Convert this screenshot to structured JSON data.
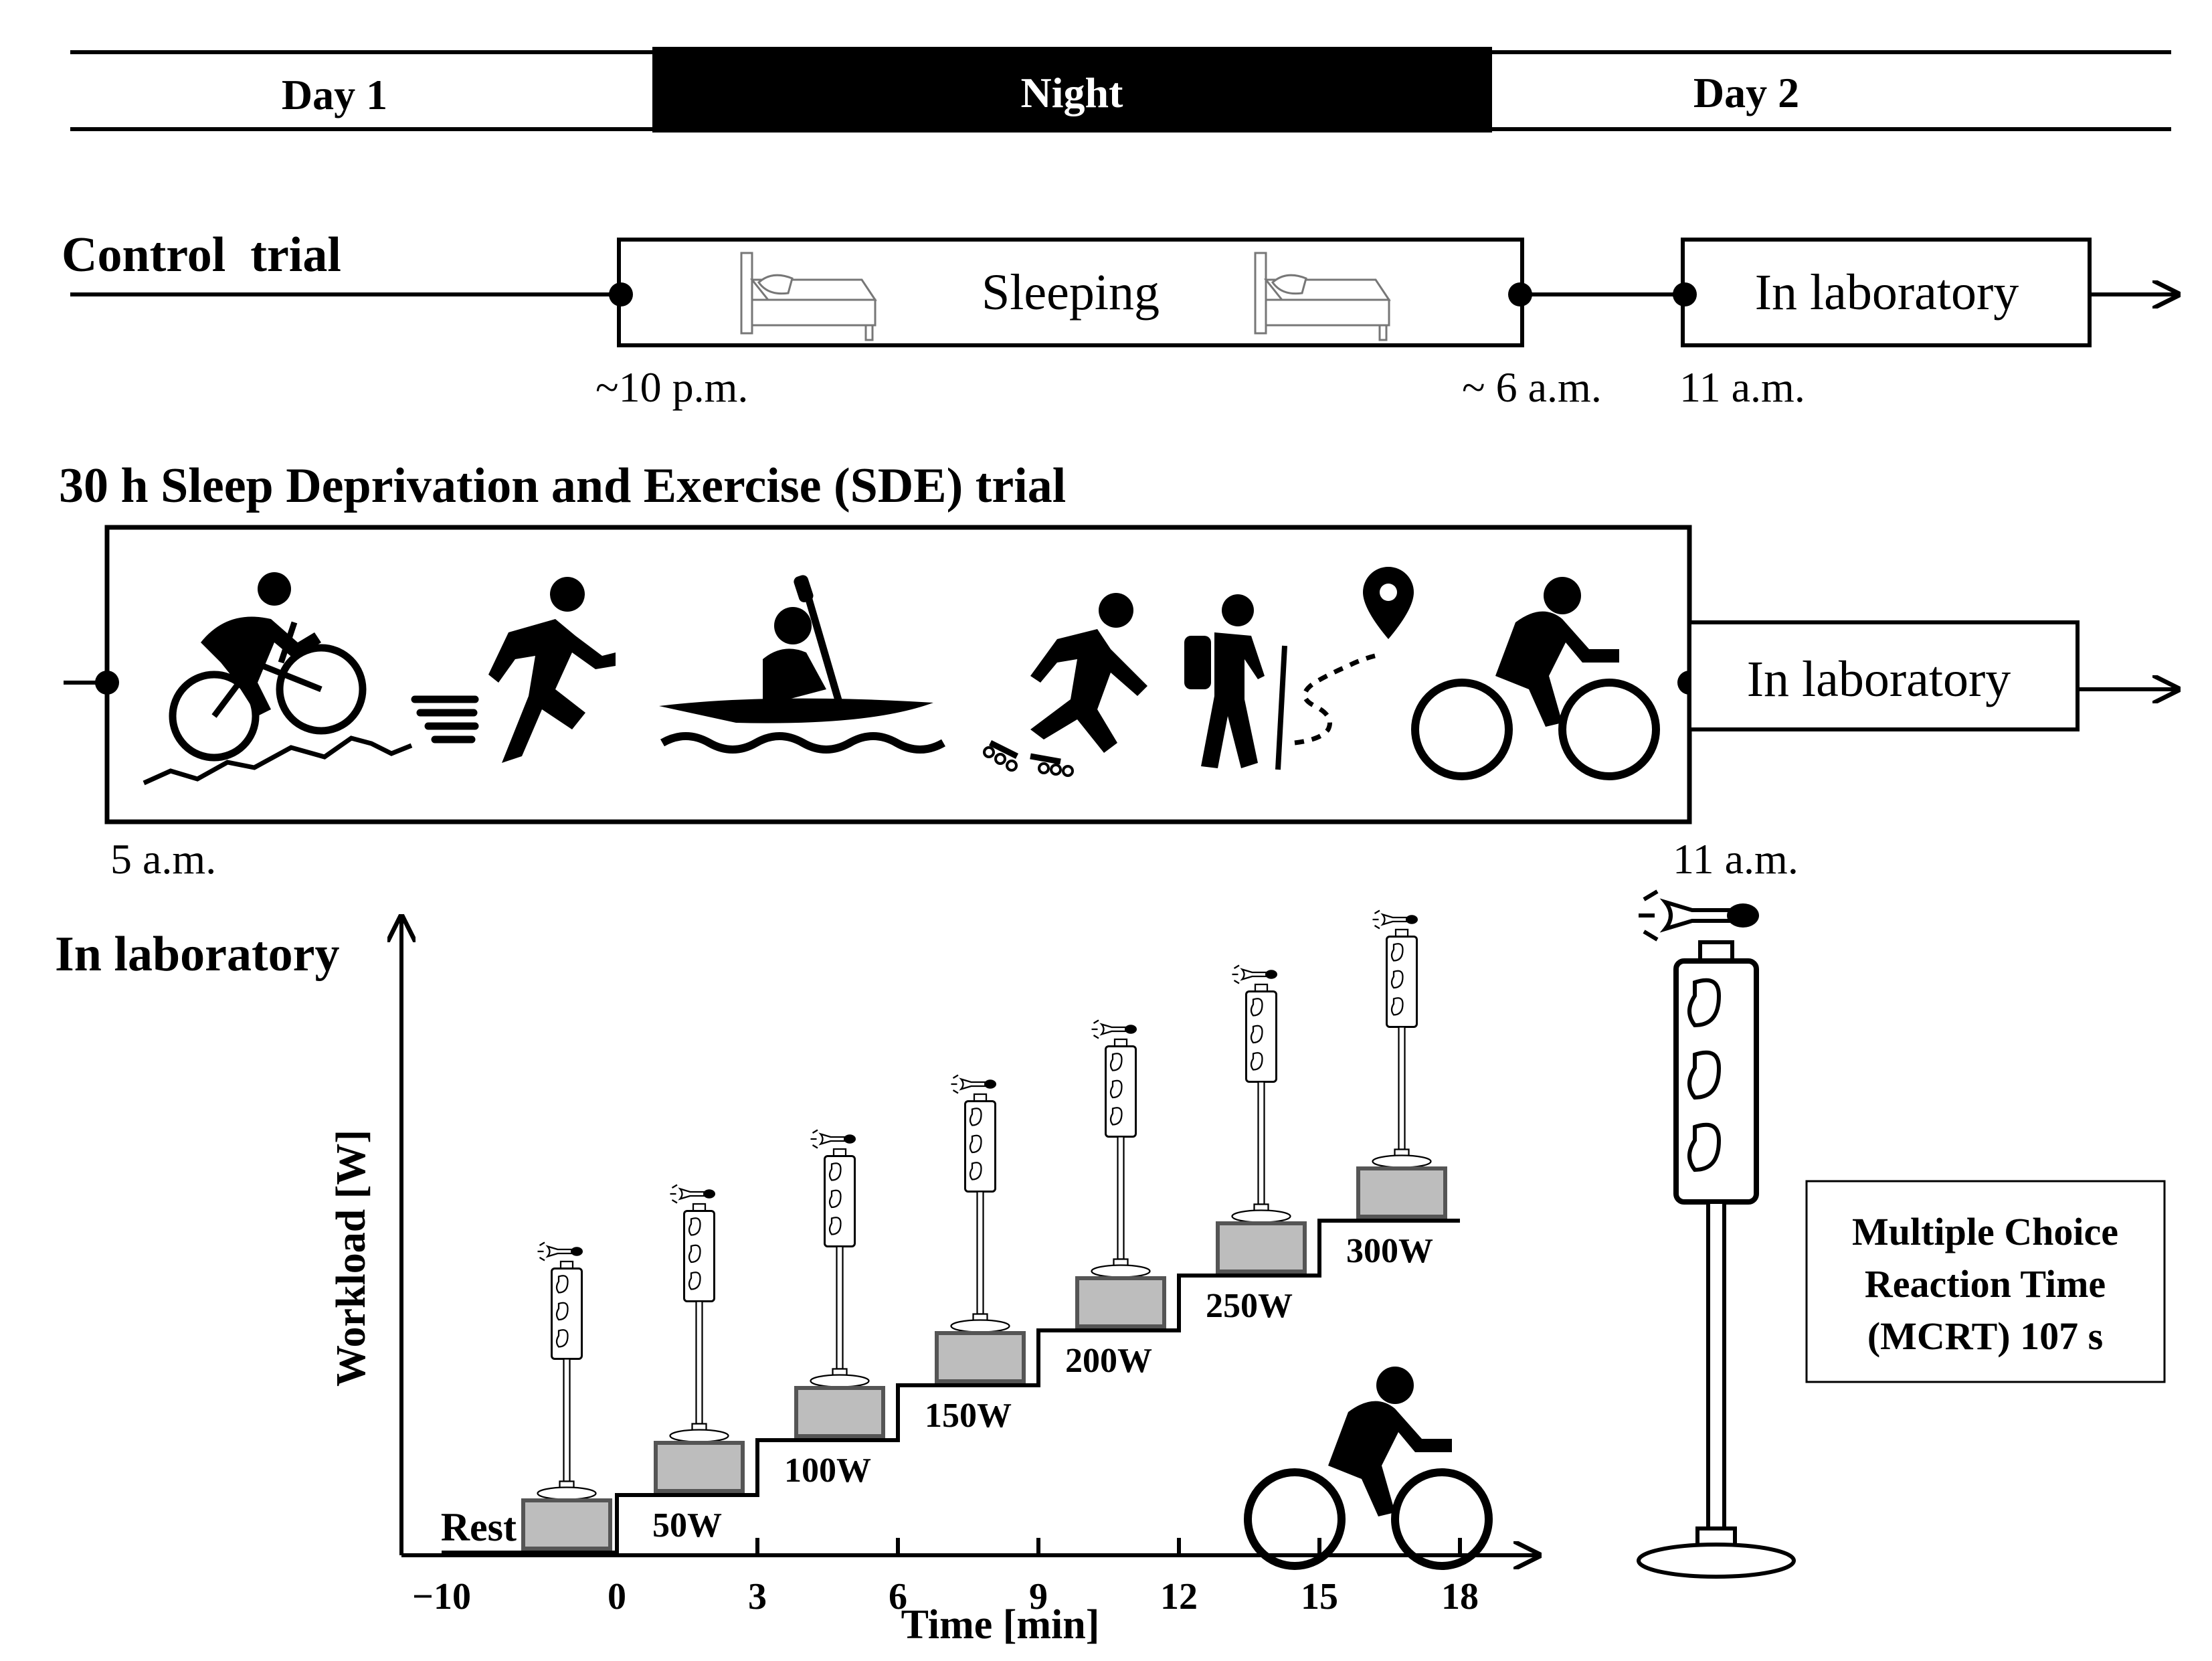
{
  "timeline": {
    "day1": "Day 1",
    "night": "Night",
    "day2": "Day 2"
  },
  "control_trial": {
    "title": "Control  trial",
    "sleeping_label": "Sleeping",
    "lab_label": "In laboratory",
    "time_start": "~10 p.m.",
    "time_end": "~ 6 a.m.",
    "time_lab": "11 a.m."
  },
  "sde_trial": {
    "title": "30 h Sleep Deprivation and Exercise (SDE) trial",
    "lab_label": "In laboratory",
    "time_start": "5 a.m.",
    "time_lab": "11 a.m.",
    "activities": [
      "mountain-bike-icon",
      "running-icon",
      "kayak-icon",
      "inline-skating-icon",
      "hiking-icon",
      "cycling-icon"
    ]
  },
  "lab_protocol": {
    "title": "In laboratory",
    "y_axis_label": "Workload [W]",
    "x_axis_label": "Time [min]",
    "x_ticks": [
      "-10",
      "0",
      "3",
      "6",
      "9",
      "12",
      "15",
      "18"
    ],
    "steps": [
      {
        "label": "Rest",
        "start_min": -10,
        "end_min": 0,
        "watts": 0
      },
      {
        "label": "50W",
        "start_min": 0,
        "end_min": 3,
        "watts": 50
      },
      {
        "label": "100W",
        "start_min": 3,
        "end_min": 6,
        "watts": 100
      },
      {
        "label": "150W",
        "start_min": 6,
        "end_min": 9,
        "watts": 150
      },
      {
        "label": "200W",
        "start_min": 9,
        "end_min": 12,
        "watts": 200
      },
      {
        "label": "250W",
        "start_min": 12,
        "end_min": 15,
        "watts": 250
      },
      {
        "label": "300W",
        "start_min": 15,
        "end_min": 18,
        "watts": 300
      }
    ],
    "mcrt_label_line1": "Multiple Choice",
    "mcrt_label_line2": "Reaction Time",
    "mcrt_label_line3": "(MCRT) 107 s"
  }
}
